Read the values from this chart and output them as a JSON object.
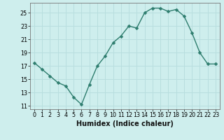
{
  "x": [
    0,
    1,
    2,
    3,
    4,
    5,
    6,
    7,
    8,
    9,
    10,
    11,
    12,
    13,
    14,
    15,
    16,
    17,
    18,
    19,
    20,
    21,
    22,
    23
  ],
  "y": [
    17.5,
    16.5,
    15.5,
    14.5,
    14.0,
    12.3,
    11.2,
    14.2,
    17.0,
    18.5,
    20.5,
    21.5,
    23.0,
    22.7,
    25.0,
    25.7,
    25.7,
    25.2,
    25.5,
    24.5,
    22.0,
    19.0,
    17.3,
    17.3
  ],
  "line_color": "#2e7d6e",
  "marker": "D",
  "marker_size": 2.5,
  "bg_color": "#ceeeed",
  "grid_color": "#b8dede",
  "xlabel": "Humidex (Indice chaleur)",
  "xlim": [
    -0.5,
    23.5
  ],
  "ylim": [
    10.5,
    26.5
  ],
  "xticks": [
    0,
    1,
    2,
    3,
    4,
    5,
    6,
    7,
    8,
    9,
    10,
    11,
    12,
    13,
    14,
    15,
    16,
    17,
    18,
    19,
    20,
    21,
    22,
    23
  ],
  "yticks": [
    11,
    13,
    15,
    17,
    19,
    21,
    23,
    25
  ],
  "tick_fontsize": 5.8,
  "label_fontsize": 7.0
}
